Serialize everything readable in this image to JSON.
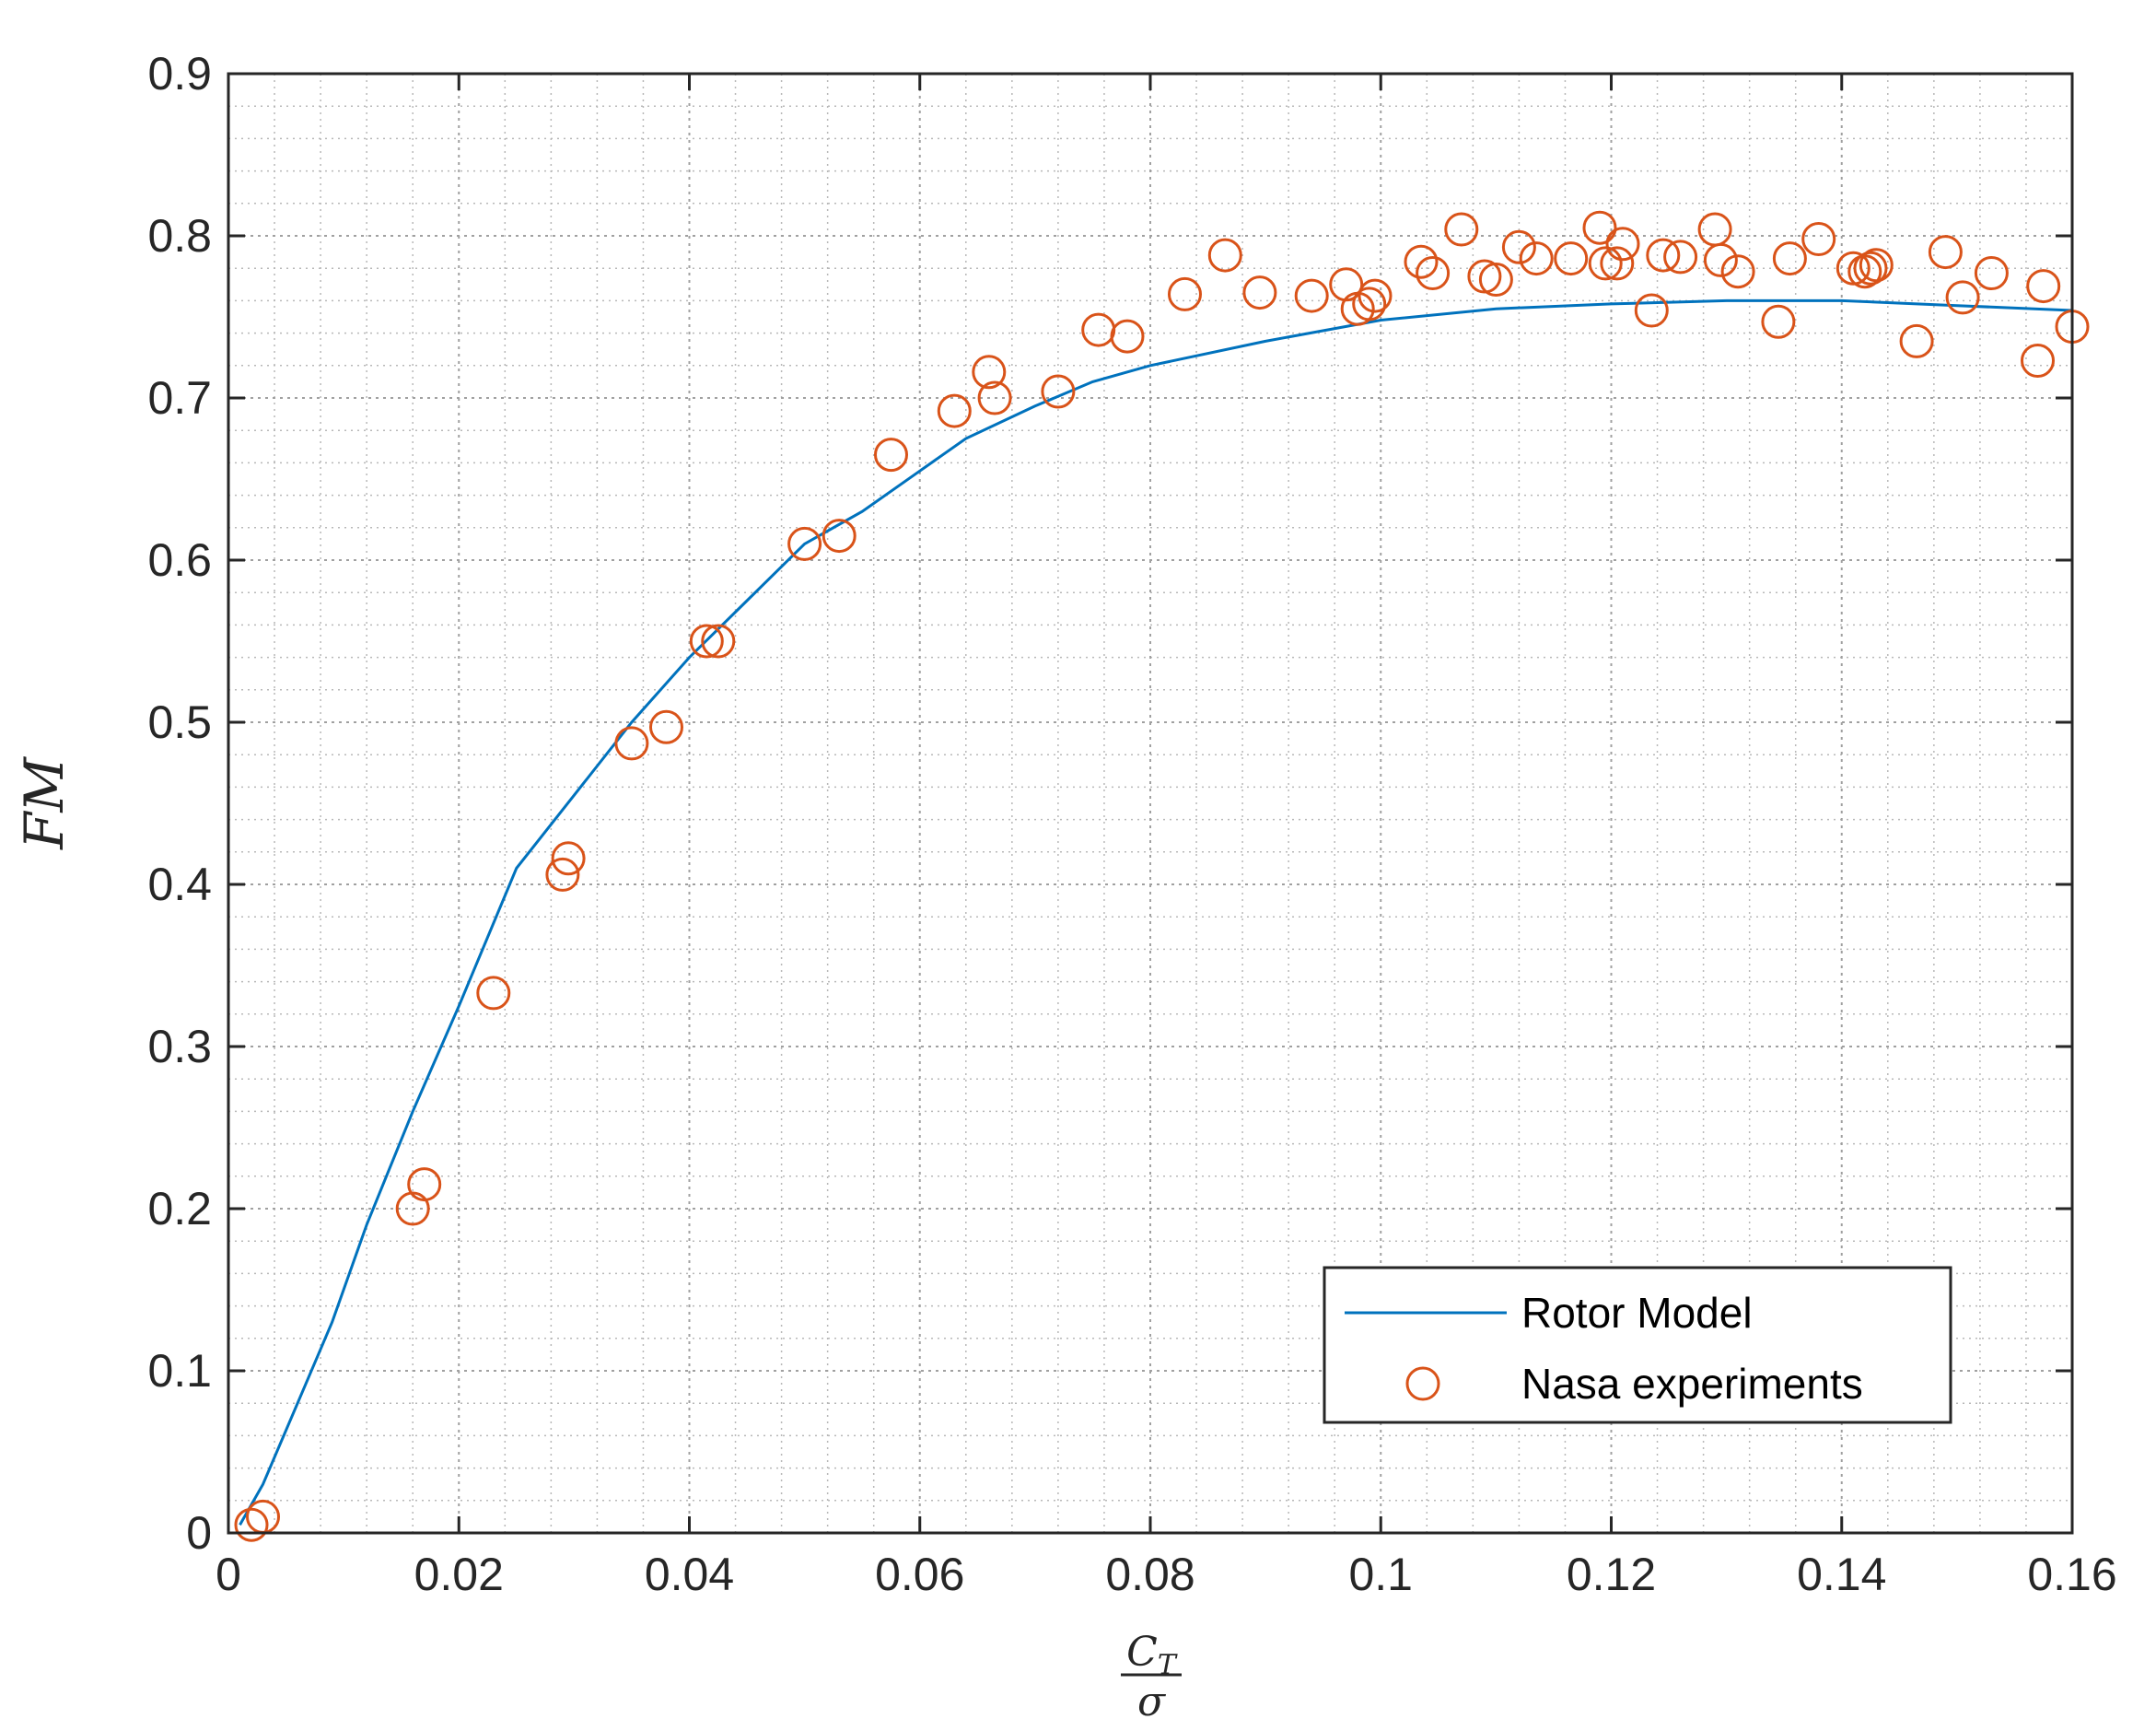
{
  "chart_data": {
    "type": "line",
    "xlabel": {
      "numerator": "C",
      "numerator_subscript": "T",
      "denominator": "σ"
    },
    "ylabel": "FM",
    "xlim": [
      0,
      0.16
    ],
    "ylim": [
      0,
      0.9
    ],
    "xticks": [
      "0",
      "0.02",
      "0.04",
      "0.06",
      "0.08",
      "0.1",
      "0.12",
      "0.14",
      "0.16"
    ],
    "yticks": [
      "0",
      "0.1",
      "0.2",
      "0.3",
      "0.4",
      "0.5",
      "0.6",
      "0.7",
      "0.8",
      "0.9"
    ],
    "grid": "major and minor (dotted minor)",
    "legend_position": "lower-right",
    "series": [
      {
        "name": "Rotor Model",
        "kind": "line",
        "color": "#0072BD",
        "x": [
          0.001,
          0.003,
          0.006,
          0.009,
          0.012,
          0.016,
          0.02,
          0.025,
          0.03,
          0.035,
          0.04,
          0.045,
          0.05,
          0.055,
          0.06,
          0.064,
          0.07,
          0.075,
          0.08,
          0.09,
          0.1,
          0.11,
          0.12,
          0.13,
          0.14,
          0.15,
          0.16
        ],
        "y": [
          0.005,
          0.03,
          0.08,
          0.13,
          0.19,
          0.26,
          0.325,
          0.41,
          0.455,
          0.5,
          0.54,
          0.575,
          0.61,
          0.63,
          0.655,
          0.675,
          0.695,
          0.71,
          0.72,
          0.735,
          0.748,
          0.755,
          0.758,
          0.76,
          0.76,
          0.757,
          0.754
        ]
      },
      {
        "name": "Nasa experiments",
        "kind": "scatter",
        "marker": "circle-open",
        "color": "#D95319",
        "points": [
          [
            0.002,
            0.005
          ],
          [
            0.003,
            0.01
          ],
          [
            0.016,
            0.2
          ],
          [
            0.017,
            0.215
          ],
          [
            0.023,
            0.333
          ],
          [
            0.029,
            0.406
          ],
          [
            0.0295,
            0.416
          ],
          [
            0.035,
            0.487
          ],
          [
            0.038,
            0.497
          ],
          [
            0.0415,
            0.55
          ],
          [
            0.0425,
            0.55
          ],
          [
            0.05,
            0.61
          ],
          [
            0.053,
            0.615
          ],
          [
            0.0575,
            0.665
          ],
          [
            0.063,
            0.692
          ],
          [
            0.066,
            0.716
          ],
          [
            0.0665,
            0.7
          ],
          [
            0.072,
            0.704
          ],
          [
            0.0755,
            0.742
          ],
          [
            0.078,
            0.738
          ],
          [
            0.083,
            0.764
          ],
          [
            0.0865,
            0.788
          ],
          [
            0.0895,
            0.765
          ],
          [
            0.094,
            0.763
          ],
          [
            0.097,
            0.77
          ],
          [
            0.098,
            0.755
          ],
          [
            0.099,
            0.758
          ],
          [
            0.0995,
            0.763
          ],
          [
            0.1035,
            0.784
          ],
          [
            0.1045,
            0.777
          ],
          [
            0.107,
            0.804
          ],
          [
            0.109,
            0.775
          ],
          [
            0.11,
            0.773
          ],
          [
            0.112,
            0.793
          ],
          [
            0.1135,
            0.786
          ],
          [
            0.1165,
            0.786
          ],
          [
            0.119,
            0.805
          ],
          [
            0.1195,
            0.783
          ],
          [
            0.1205,
            0.783
          ],
          [
            0.121,
            0.795
          ],
          [
            0.1235,
            0.754
          ],
          [
            0.1245,
            0.788
          ],
          [
            0.126,
            0.787
          ],
          [
            0.129,
            0.804
          ],
          [
            0.1295,
            0.785
          ],
          [
            0.131,
            0.778
          ],
          [
            0.1345,
            0.747
          ],
          [
            0.1355,
            0.786
          ],
          [
            0.138,
            0.798
          ],
          [
            0.141,
            0.78
          ],
          [
            0.142,
            0.778
          ],
          [
            0.1425,
            0.78
          ],
          [
            0.143,
            0.782
          ],
          [
            0.1465,
            0.735
          ],
          [
            0.149,
            0.79
          ],
          [
            0.1505,
            0.762
          ],
          [
            0.153,
            0.777
          ],
          [
            0.157,
            0.723
          ],
          [
            0.1575,
            0.769
          ],
          [
            0.16,
            0.744
          ]
        ]
      }
    ]
  }
}
